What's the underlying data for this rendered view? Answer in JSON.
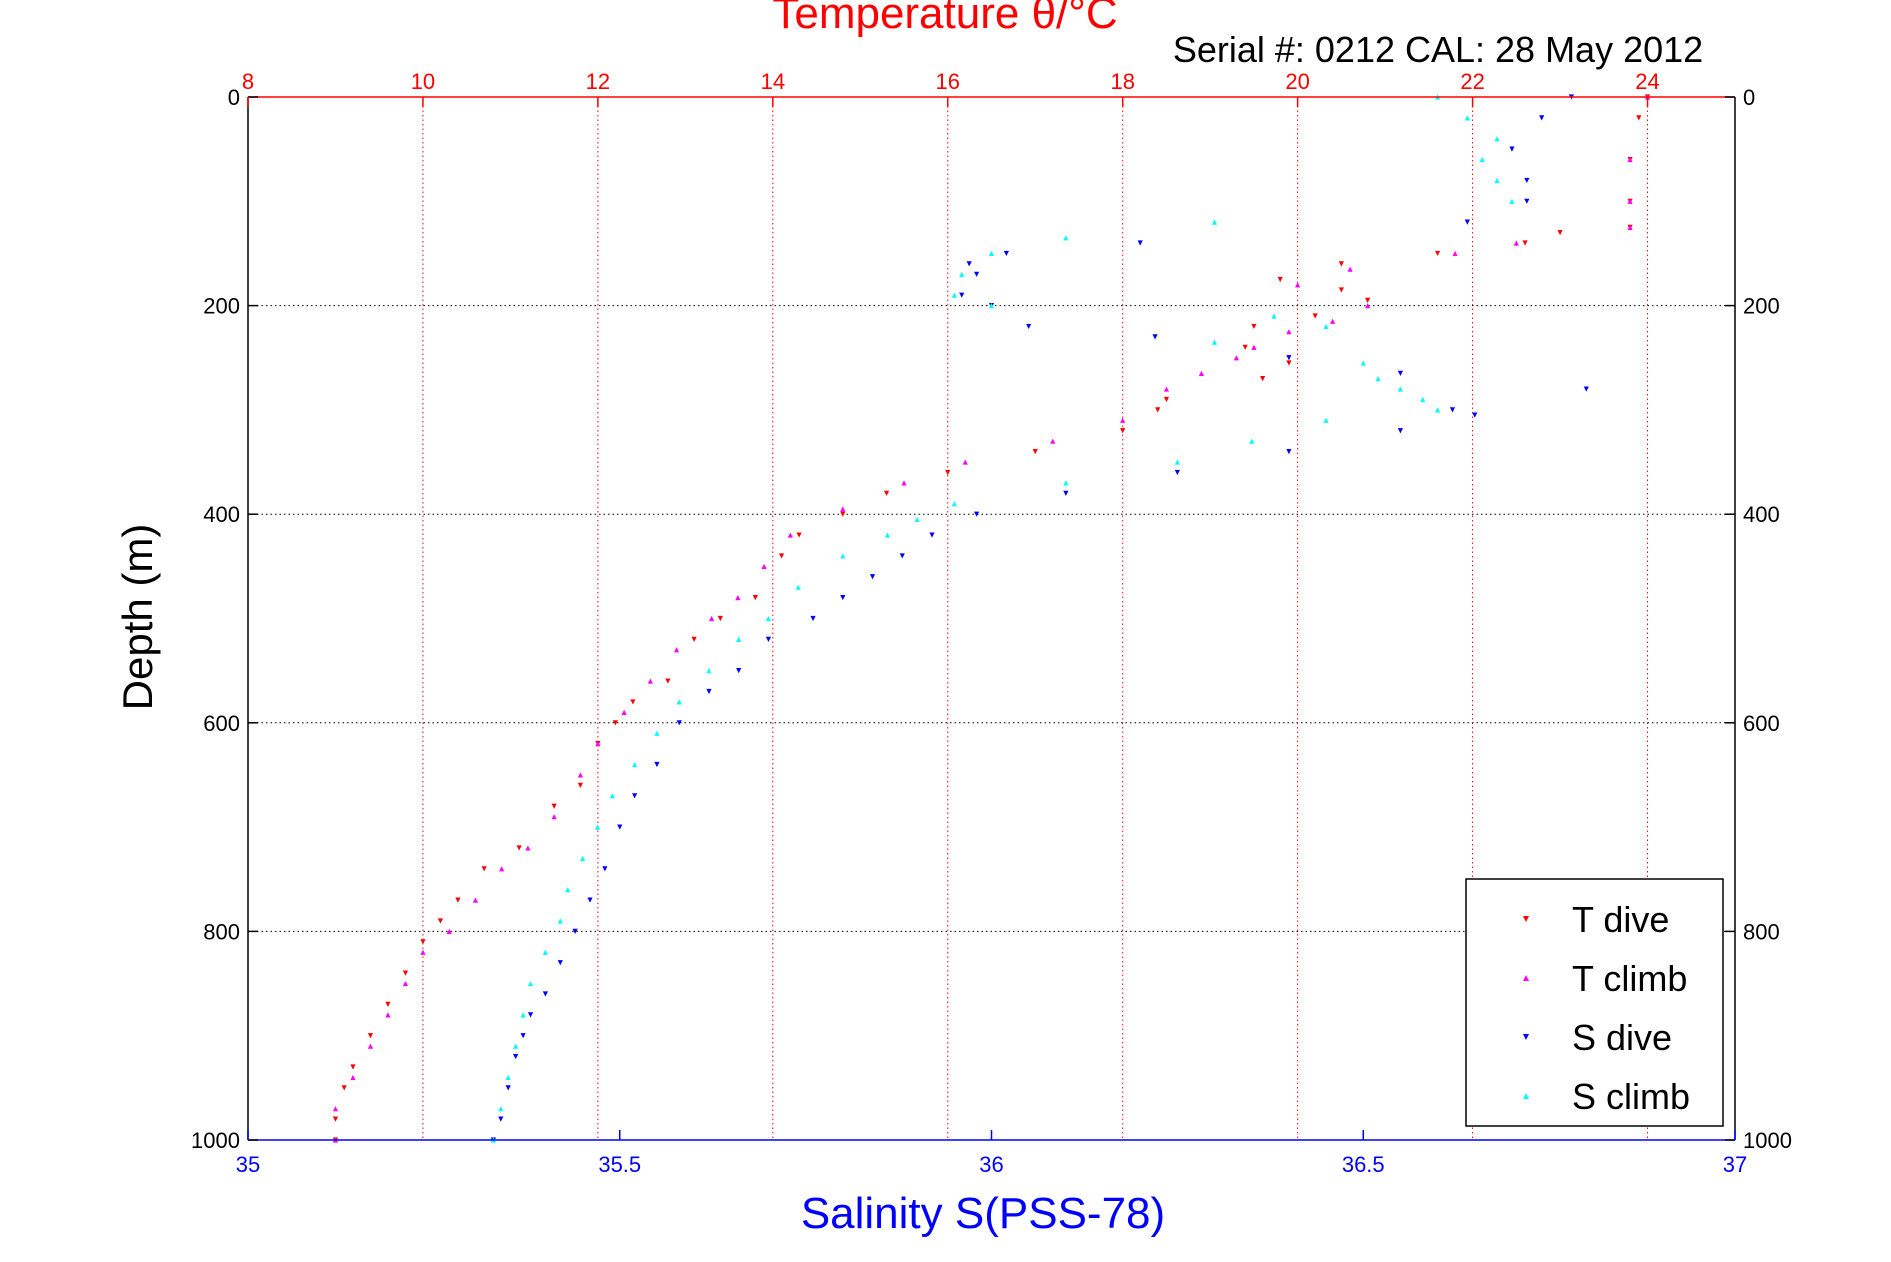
{
  "figure": {
    "title": "Temperature θ/°C",
    "serial_caption": "Serial #: 0212  CAL: 28 May 2012",
    "ylabel": "Depth (m)",
    "xlabel": "Salinity S(PSS-78)"
  },
  "colors": {
    "temperature_axis": "#ff0000",
    "salinity_axis": "#0000ff",
    "t_dive": "#ff0000",
    "t_climb": "#ff00ff",
    "s_dive": "#0000ff",
    "s_climb": "#00ffff",
    "grid_temperature": "#ff0000",
    "grid_depth": "#000000"
  },
  "chart_data": {
    "type": "scatter",
    "title": "Temperature θ/°C",
    "xlabel": "Salinity S(PSS-78)",
    "ylabel": "Depth (m)",
    "grid": true,
    "legend_position": "bottom-right",
    "axes": {
      "depth": {
        "range": [
          0,
          1000
        ],
        "reversed": true,
        "ticks": [
          0,
          200,
          400,
          600,
          800,
          1000
        ],
        "tick_labels": [
          "0",
          "200",
          "400",
          "600",
          "800",
          "1000"
        ]
      },
      "temperature": {
        "range": [
          8,
          25
        ],
        "ticks": [
          8,
          10,
          12,
          14,
          16,
          18,
          20,
          22,
          24
        ],
        "tick_labels": [
          "8",
          "10",
          "12",
          "14",
          "16",
          "18",
          "20",
          "22",
          "24"
        ]
      },
      "salinity": {
        "range": [
          35,
          37
        ],
        "ticks": [
          35,
          35.5,
          36,
          36.5,
          37
        ],
        "tick_labels": [
          "35",
          "35.5",
          "36",
          "36.5",
          "37"
        ]
      }
    },
    "series": [
      {
        "name": "T dive",
        "axis": "temperature",
        "marker": "triangle-down",
        "points": [
          [
            24.0,
            0
          ],
          [
            23.9,
            20
          ],
          [
            23.8,
            60
          ],
          [
            23.8,
            100
          ],
          [
            23.8,
            125
          ],
          [
            23.0,
            130
          ],
          [
            22.6,
            140
          ],
          [
            21.6,
            150
          ],
          [
            20.5,
            160
          ],
          [
            19.8,
            175
          ],
          [
            20.5,
            185
          ],
          [
            20.8,
            195
          ],
          [
            20.2,
            210
          ],
          [
            19.5,
            220
          ],
          [
            19.4,
            240
          ],
          [
            19.9,
            255
          ],
          [
            19.6,
            270
          ],
          [
            18.5,
            290
          ],
          [
            18.4,
            300
          ],
          [
            18.0,
            320
          ],
          [
            17.0,
            340
          ],
          [
            16.0,
            360
          ],
          [
            15.3,
            380
          ],
          [
            14.8,
            400
          ],
          [
            14.3,
            420
          ],
          [
            14.1,
            440
          ],
          [
            13.8,
            480
          ],
          [
            13.4,
            500
          ],
          [
            13.1,
            520
          ],
          [
            12.8,
            560
          ],
          [
            12.4,
            580
          ],
          [
            12.2,
            600
          ],
          [
            12.0,
            620
          ],
          [
            11.8,
            660
          ],
          [
            11.5,
            680
          ],
          [
            11.1,
            720
          ],
          [
            10.7,
            740
          ],
          [
            10.4,
            770
          ],
          [
            10.2,
            790
          ],
          [
            10.0,
            810
          ],
          [
            9.8,
            840
          ],
          [
            9.6,
            870
          ],
          [
            9.4,
            900
          ],
          [
            9.2,
            930
          ],
          [
            9.1,
            950
          ],
          [
            9.0,
            980
          ],
          [
            9.0,
            1000
          ]
        ]
      },
      {
        "name": "T climb",
        "axis": "temperature",
        "marker": "triangle-up",
        "points": [
          [
            24.0,
            0
          ],
          [
            23.8,
            60
          ],
          [
            23.8,
            100
          ],
          [
            23.8,
            125
          ],
          [
            22.5,
            140
          ],
          [
            21.8,
            150
          ],
          [
            20.6,
            165
          ],
          [
            20.0,
            180
          ],
          [
            20.8,
            200
          ],
          [
            20.4,
            215
          ],
          [
            19.9,
            225
          ],
          [
            19.5,
            240
          ],
          [
            19.3,
            250
          ],
          [
            18.9,
            265
          ],
          [
            18.5,
            280
          ],
          [
            18.0,
            310
          ],
          [
            17.2,
            330
          ],
          [
            16.2,
            350
          ],
          [
            15.5,
            370
          ],
          [
            14.8,
            395
          ],
          [
            14.2,
            420
          ],
          [
            13.9,
            450
          ],
          [
            13.6,
            480
          ],
          [
            13.3,
            500
          ],
          [
            12.9,
            530
          ],
          [
            12.6,
            560
          ],
          [
            12.3,
            590
          ],
          [
            12.0,
            620
          ],
          [
            11.8,
            650
          ],
          [
            11.5,
            690
          ],
          [
            11.2,
            720
          ],
          [
            10.9,
            740
          ],
          [
            10.6,
            770
          ],
          [
            10.3,
            800
          ],
          [
            10.0,
            820
          ],
          [
            9.8,
            850
          ],
          [
            9.6,
            880
          ],
          [
            9.4,
            910
          ],
          [
            9.2,
            940
          ],
          [
            9.0,
            970
          ],
          [
            9.0,
            1000
          ]
        ]
      },
      {
        "name": "S dive",
        "axis": "salinity",
        "marker": "triangle-down",
        "points": [
          [
            36.78,
            0
          ],
          [
            36.74,
            20
          ],
          [
            36.7,
            50
          ],
          [
            36.72,
            80
          ],
          [
            36.72,
            100
          ],
          [
            36.64,
            120
          ],
          [
            36.2,
            140
          ],
          [
            36.02,
            150
          ],
          [
            35.97,
            160
          ],
          [
            35.98,
            170
          ],
          [
            35.96,
            190
          ],
          [
            36.0,
            200
          ],
          [
            36.05,
            220
          ],
          [
            36.22,
            230
          ],
          [
            36.4,
            250
          ],
          [
            36.55,
            265
          ],
          [
            36.8,
            280
          ],
          [
            36.62,
            300
          ],
          [
            36.65,
            305
          ],
          [
            36.55,
            320
          ],
          [
            36.4,
            340
          ],
          [
            36.25,
            360
          ],
          [
            36.1,
            380
          ],
          [
            35.98,
            400
          ],
          [
            35.92,
            420
          ],
          [
            35.88,
            440
          ],
          [
            35.84,
            460
          ],
          [
            35.8,
            480
          ],
          [
            35.76,
            500
          ],
          [
            35.7,
            520
          ],
          [
            35.66,
            550
          ],
          [
            35.62,
            570
          ],
          [
            35.58,
            600
          ],
          [
            35.55,
            640
          ],
          [
            35.52,
            670
          ],
          [
            35.5,
            700
          ],
          [
            35.48,
            740
          ],
          [
            35.46,
            770
          ],
          [
            35.44,
            800
          ],
          [
            35.42,
            830
          ],
          [
            35.4,
            860
          ],
          [
            35.38,
            880
          ],
          [
            35.37,
            900
          ],
          [
            35.36,
            920
          ],
          [
            35.35,
            950
          ],
          [
            35.34,
            980
          ],
          [
            35.33,
            1000
          ]
        ]
      },
      {
        "name": "S climb",
        "axis": "salinity",
        "marker": "triangle-up",
        "points": [
          [
            36.6,
            0
          ],
          [
            36.64,
            20
          ],
          [
            36.68,
            40
          ],
          [
            36.66,
            60
          ],
          [
            36.68,
            80
          ],
          [
            36.7,
            100
          ],
          [
            36.3,
            120
          ],
          [
            36.1,
            135
          ],
          [
            36.0,
            150
          ],
          [
            35.96,
            170
          ],
          [
            35.95,
            190
          ],
          [
            36.0,
            200
          ],
          [
            36.38,
            210
          ],
          [
            36.45,
            220
          ],
          [
            36.3,
            235
          ],
          [
            36.5,
            255
          ],
          [
            36.52,
            270
          ],
          [
            36.55,
            280
          ],
          [
            36.58,
            290
          ],
          [
            36.6,
            300
          ],
          [
            36.45,
            310
          ],
          [
            36.35,
            330
          ],
          [
            36.25,
            350
          ],
          [
            36.1,
            370
          ],
          [
            35.95,
            390
          ],
          [
            35.9,
            405
          ],
          [
            35.86,
            420
          ],
          [
            35.8,
            440
          ],
          [
            35.74,
            470
          ],
          [
            35.7,
            500
          ],
          [
            35.66,
            520
          ],
          [
            35.62,
            550
          ],
          [
            35.58,
            580
          ],
          [
            35.55,
            610
          ],
          [
            35.52,
            640
          ],
          [
            35.49,
            670
          ],
          [
            35.47,
            700
          ],
          [
            35.45,
            730
          ],
          [
            35.43,
            760
          ],
          [
            35.42,
            790
          ],
          [
            35.4,
            820
          ],
          [
            35.38,
            850
          ],
          [
            35.37,
            880
          ],
          [
            35.36,
            910
          ],
          [
            35.35,
            940
          ],
          [
            35.34,
            970
          ],
          [
            35.33,
            1000
          ]
        ]
      }
    ]
  }
}
